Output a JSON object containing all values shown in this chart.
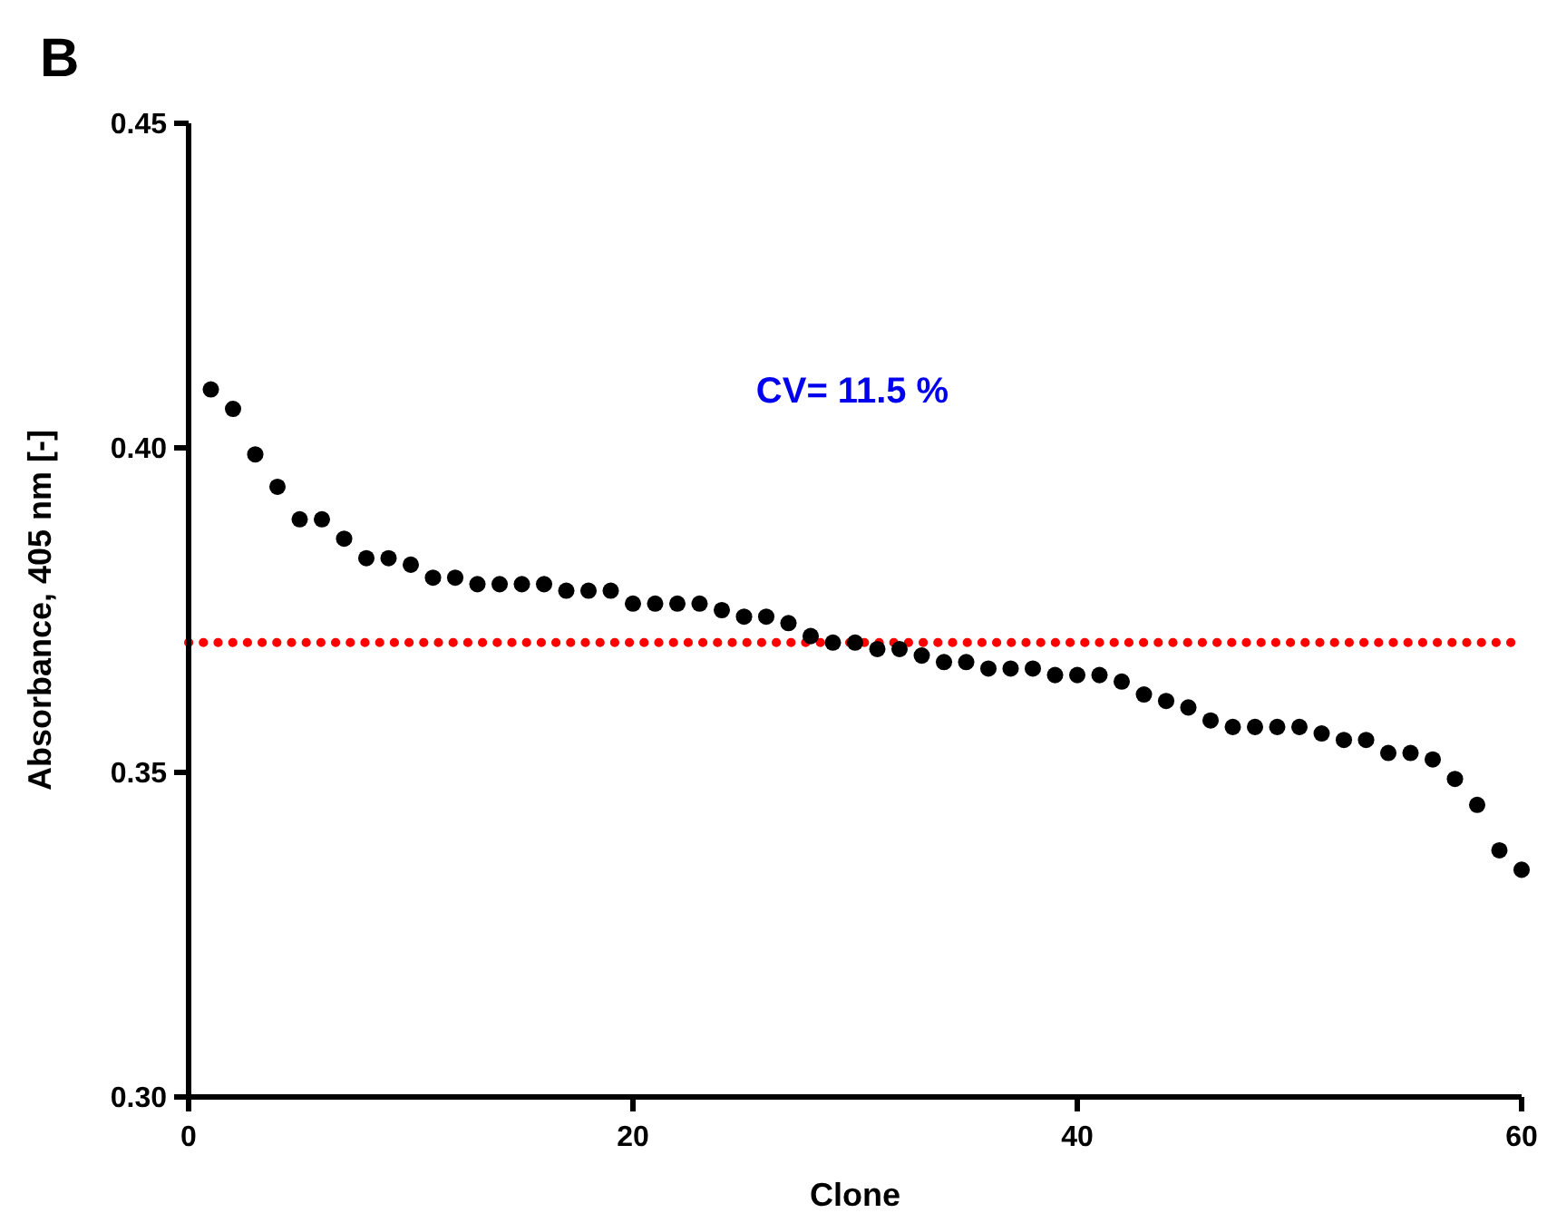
{
  "chart_data": {
    "type": "scatter",
    "title": "B",
    "xlabel": "Clone",
    "ylabel": "Absorbance, 405 nm [-]",
    "annotations": [
      "CV= 11.5 %"
    ],
    "x": [
      1,
      2,
      3,
      4,
      5,
      6,
      7,
      8,
      9,
      10,
      11,
      12,
      13,
      14,
      15,
      16,
      17,
      18,
      19,
      20,
      21,
      22,
      23,
      24,
      25,
      26,
      27,
      28,
      29,
      30,
      31,
      32,
      33,
      34,
      35,
      36,
      37,
      38,
      39,
      40,
      41,
      42,
      43,
      44,
      45,
      46,
      47,
      48,
      49,
      50,
      51,
      52,
      53,
      54,
      55,
      56,
      57,
      58,
      59,
      60
    ],
    "series": [
      {
        "color": "#000000",
        "values": [
          0.409,
          0.406,
          0.399,
          0.394,
          0.389,
          0.389,
          0.386,
          0.383,
          0.383,
          0.382,
          0.38,
          0.38,
          0.379,
          0.379,
          0.379,
          0.379,
          0.378,
          0.378,
          0.378,
          0.376,
          0.376,
          0.376,
          0.376,
          0.375,
          0.374,
          0.374,
          0.373,
          0.371,
          0.37,
          0.37,
          0.369,
          0.369,
          0.368,
          0.367,
          0.367,
          0.366,
          0.366,
          0.366,
          0.365,
          0.365,
          0.365,
          0.364,
          0.362,
          0.361,
          0.36,
          0.358,
          0.357,
          0.357,
          0.357,
          0.357,
          0.356,
          0.355,
          0.355,
          0.353,
          0.353,
          0.352,
          0.349,
          0.345,
          0.338,
          0.335
        ]
      }
    ],
    "xlim": [
      0,
      60
    ],
    "xticks": [
      0,
      20,
      40,
      60
    ],
    "ylim": [
      0.3,
      0.45
    ],
    "yticks": [
      {
        "value": 0.3,
        "label": "0.30"
      },
      {
        "value": 0.35,
        "label": "0.35"
      },
      {
        "value": 0.4,
        "label": "0.40"
      },
      {
        "value": 0.45,
        "label": "0.45"
      }
    ],
    "ref_lines": [
      {
        "axis": "y",
        "value": 0.37,
        "color": "#ff0000",
        "line_style": "dotted"
      }
    ],
    "marker": "circle"
  }
}
